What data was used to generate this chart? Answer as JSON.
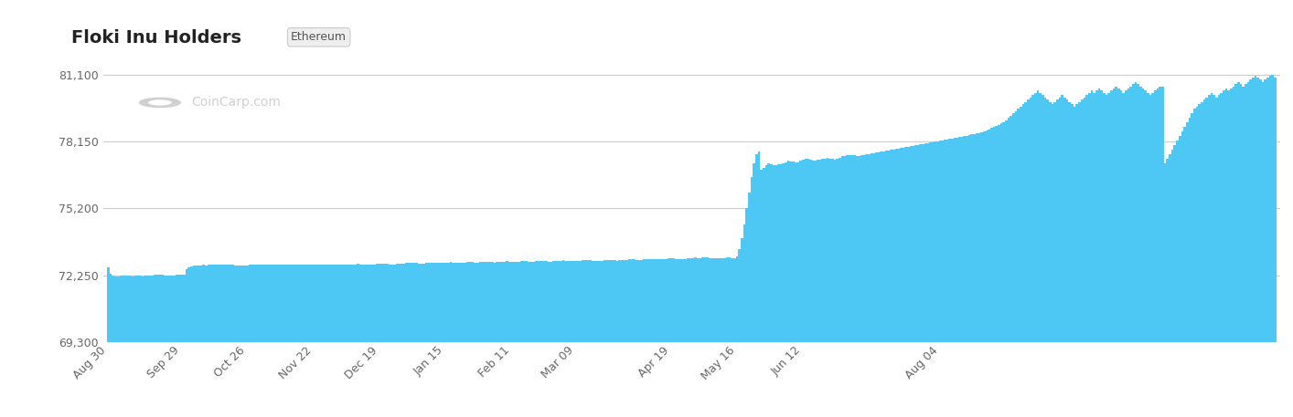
{
  "title": "Floki Inu Holders",
  "subtitle": "Ethereum",
  "bar_color": "#4dc8f5",
  "background_color": "#ffffff",
  "yticks": [
    69300,
    72250,
    75200,
    78150,
    81100
  ],
  "ylim": [
    69300,
    82200
  ],
  "xlabel_dates": [
    "Aug 30",
    "Sep 29",
    "Oct 26",
    "Nov 22",
    "Dec 19",
    "Jan 15",
    "Feb 11",
    "Mar 09",
    "Apr 19",
    "May 16",
    "Jun 12",
    "Aug 04"
  ],
  "watermark": "CoinCarp.com",
  "values": [
    72580,
    72300,
    72220,
    72200,
    72210,
    72220,
    72230,
    72250,
    72230,
    72220,
    72210,
    72220,
    72230,
    72220,
    72210,
    72220,
    72230,
    72240,
    72250,
    72260,
    72260,
    72270,
    72260,
    72250,
    72240,
    72230,
    72240,
    72250,
    72260,
    72260,
    72270,
    72270,
    72500,
    72600,
    72650,
    72680,
    72680,
    72690,
    72690,
    72700,
    72690,
    72700,
    72700,
    72710,
    72710,
    72720,
    72720,
    72730,
    72720,
    72710,
    72700,
    72700,
    72690,
    72680,
    72670,
    72680,
    72680,
    72690,
    72700,
    72700,
    72710,
    72710,
    72720,
    72720,
    72720,
    72730,
    72720,
    72710,
    72700,
    72700,
    72700,
    72700,
    72710,
    72720,
    72720,
    72730,
    72720,
    72720,
    72710,
    72700,
    72700,
    72700,
    72700,
    72700,
    72700,
    72700,
    72700,
    72710,
    72720,
    72720,
    72730,
    72720,
    72730,
    72720,
    72710,
    72700,
    72700,
    72710,
    72710,
    72720,
    72730,
    72730,
    72740,
    72730,
    72720,
    72710,
    72700,
    72710,
    72720,
    72730,
    72740,
    72750,
    72760,
    72750,
    72740,
    72730,
    72720,
    72730,
    72740,
    72750,
    72760,
    72760,
    72780,
    72790,
    72800,
    72790,
    72780,
    72770,
    72760,
    72770,
    72780,
    72790,
    72800,
    72810,
    72800,
    72790,
    72780,
    72790,
    72800,
    72810,
    72820,
    72810,
    72800,
    72790,
    72780,
    72800,
    72810,
    72820,
    72830,
    72820,
    72810,
    72800,
    72830,
    72840,
    72850,
    72840,
    72830,
    72820,
    72810,
    72820,
    72830,
    72840,
    72850,
    72860,
    72850,
    72840,
    72830,
    72840,
    72850,
    72860,
    72870,
    72860,
    72850,
    72840,
    72850,
    72860,
    72870,
    72880,
    72870,
    72860,
    72850,
    72840,
    72860,
    72870,
    72880,
    72890,
    72900,
    72890,
    72880,
    72870,
    72860,
    72870,
    72880,
    72890,
    72900,
    72900,
    72910,
    72900,
    72890,
    72880,
    72870,
    72880,
    72890,
    72900,
    72910,
    72920,
    72910,
    72900,
    72890,
    72900,
    72910,
    72920,
    72930,
    72940,
    72950,
    72940,
    72930,
    72920,
    72930,
    72940,
    72950,
    72960,
    72970,
    72960,
    72950,
    72940,
    72950,
    72960,
    72970,
    72980,
    72990,
    72980,
    72970,
    72960,
    72950,
    72960,
    72970,
    72980,
    73000,
    73010,
    73020,
    73010,
    73010,
    73020,
    73030,
    73020,
    73010,
    73010,
    73010,
    73000,
    72990,
    73000,
    73010,
    73020,
    73020,
    73010,
    73000,
    73100,
    73400,
    73900,
    74500,
    75200,
    75900,
    76600,
    77200,
    77600,
    77700,
    76900,
    77000,
    77100,
    77200,
    77150,
    77100,
    77120,
    77140,
    77150,
    77200,
    77250,
    77300,
    77280,
    77260,
    77250,
    77240,
    77300,
    77350,
    77400,
    77380,
    77350,
    77300,
    77320,
    77340,
    77360,
    77380,
    77400,
    77420,
    77400,
    77380,
    77360,
    77400,
    77450,
    77500,
    77520,
    77540,
    77560,
    77550,
    77540,
    77530,
    77520,
    77540,
    77560,
    77580,
    77600,
    77620,
    77640,
    77660,
    77680,
    77700,
    77720,
    77740,
    77760,
    77780,
    77800,
    77820,
    77840,
    77860,
    77880,
    77900,
    77920,
    77940,
    77960,
    77980,
    78000,
    78020,
    78050,
    78080,
    78100,
    78120,
    78140,
    78160,
    78180,
    78200,
    78220,
    78240,
    78260,
    78280,
    78300,
    78320,
    78340,
    78360,
    78380,
    78400,
    78420,
    78450,
    78480,
    78500,
    78520,
    78540,
    78560,
    78600,
    78650,
    78700,
    78750,
    78800,
    78850,
    78900,
    78950,
    79000,
    79100,
    79200,
    79300,
    79400,
    79500,
    79600,
    79700,
    79800,
    79900,
    80000,
    80100,
    80200,
    80300,
    80400,
    80300,
    80200,
    80100,
    80000,
    79900,
    79800,
    79900,
    80000,
    80100,
    80200,
    80100,
    80000,
    79900,
    79800,
    79700,
    79800,
    79900,
    80000,
    80100,
    80200,
    80300,
    80400,
    80300,
    80400,
    80500,
    80400,
    80300,
    80200,
    80300,
    80400,
    80500,
    80600,
    80500,
    80400,
    80300,
    80400,
    80500,
    80600,
    80700,
    80800,
    80700,
    80600,
    80500,
    80400,
    80300,
    80200,
    80300,
    80400,
    80500,
    80600,
    80600,
    77200,
    77400,
    77600,
    77800,
    78000,
    78200,
    78400,
    78600,
    78800,
    79000,
    79200,
    79400,
    79600,
    79700,
    79800,
    79900,
    80000,
    80100,
    80200,
    80300,
    80200,
    80100,
    80200,
    80300,
    80400,
    80500,
    80400,
    80500,
    80600,
    80700,
    80800,
    80700,
    80600,
    80700,
    80800,
    80900,
    81000,
    81050,
    81000,
    80900,
    80800,
    80900,
    81000,
    81050,
    81100,
    81000
  ]
}
